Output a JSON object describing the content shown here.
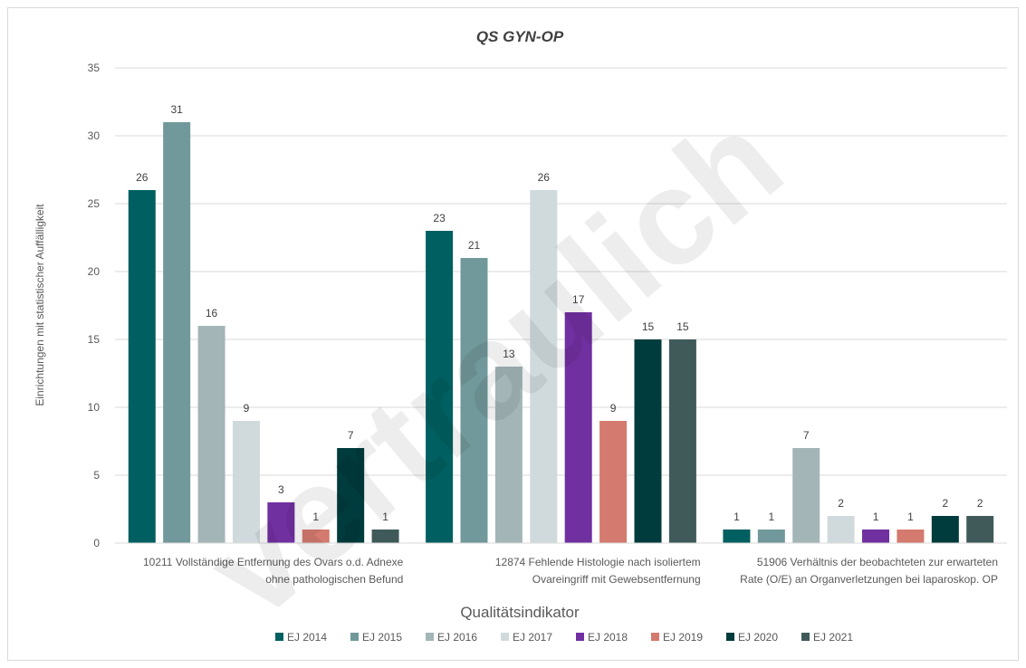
{
  "chart_data": {
    "type": "bar",
    "title": "QS GYN-OP",
    "xlabel": "Qualitätsindikator",
    "ylabel": "Einrichtungen mit statistischer Auffälligkeit",
    "ylim": [
      0,
      35
    ],
    "yticks": [
      0,
      5,
      10,
      15,
      20,
      25,
      30,
      35
    ],
    "grid": true,
    "legend_position": "bottom",
    "categories": [
      [
        "10211 Vollständige Entfernung des Ovars o.d. Adnexe",
        "ohne pathologischen Befund"
      ],
      [
        "12874 Fehlende Histologie nach isoliertem",
        "Ovareingriff mit Gewebsentfernung"
      ],
      [
        "51906 Verhältnis der beobachteten zur erwarteten",
        "Rate (O/E) an Organverletzungen bei laparoskop. OP"
      ]
    ],
    "series": [
      {
        "name": "EJ 2014",
        "color": "#005f60",
        "values": [
          26,
          23,
          1
        ]
      },
      {
        "name": "EJ 2015",
        "color": "#71989a",
        "values": [
          31,
          21,
          1
        ]
      },
      {
        "name": "EJ 2016",
        "color": "#a3b5b7",
        "values": [
          16,
          13,
          7
        ]
      },
      {
        "name": "EJ 2017",
        "color": "#d0dadd",
        "values": [
          9,
          26,
          2
        ]
      },
      {
        "name": "EJ 2018",
        "color": "#7030a0",
        "values": [
          3,
          17,
          1
        ]
      },
      {
        "name": "EJ 2019",
        "color": "#d47a6f",
        "values": [
          1,
          9,
          1
        ]
      },
      {
        "name": "EJ 2020",
        "color": "#003b3d",
        "values": [
          7,
          15,
          2
        ]
      },
      {
        "name": "EJ 2021",
        "color": "#405a5a",
        "values": [
          1,
          15,
          2
        ]
      }
    ],
    "watermark": "vertraulich"
  }
}
